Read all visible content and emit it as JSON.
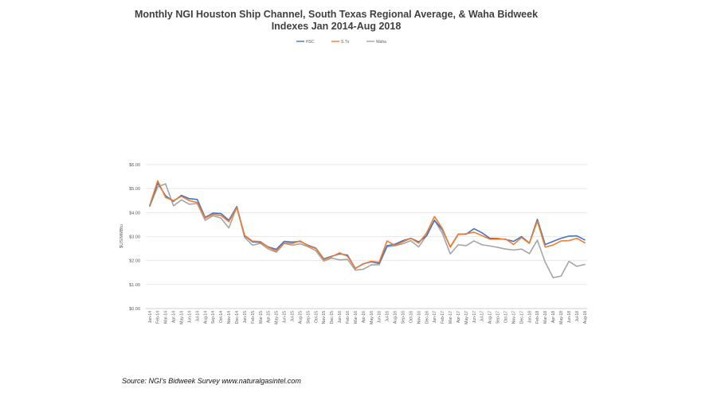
{
  "chart_data": {
    "type": "line",
    "title_lines": [
      "Monthly NGI Houston Ship Channel, South Texas Regional Average, & Waha Bidweek",
      "Indexes Jan 2014-Aug 2018"
    ],
    "ylabel": "$US/MMBtu",
    "xlabel": "",
    "ylim": [
      0,
      6
    ],
    "yticks": [
      "$0.00",
      "$1.00",
      "$2.00",
      "$3.00",
      "$4.00",
      "$5.00",
      "$6.00"
    ],
    "legend_position": "top-center",
    "grid": true,
    "categories": [
      "Jan-14",
      "Feb-14",
      "Mar-14",
      "Apr-14",
      "May-14",
      "Jun-14",
      "Jul-14",
      "Aug-14",
      "Sep-14",
      "Oct-14",
      "Nov-14",
      "Dec-14",
      "Jan-15",
      "Feb-15",
      "Mar-15",
      "Apr-15",
      "May-15",
      "Jun-15",
      "Jul-15",
      "Aug-15",
      "Sep-15",
      "Oct-15",
      "Nov-15",
      "Dec-15",
      "Jan-16",
      "Feb-16",
      "Mar-16",
      "Apr-16",
      "May-16",
      "Jun-16",
      "Jul-16",
      "Aug-16",
      "Sep-16",
      "Oct-16",
      "Nov-16",
      "Dec-16",
      "Jan-17",
      "Feb-17",
      "Mar-17",
      "Apr-17",
      "May-17",
      "Jun-17",
      "Jul-17",
      "Aug-17",
      "Sep-17",
      "Oct-17",
      "Nov-17",
      "Dec-17",
      "Jan-18",
      "Feb-18",
      "Mar-18",
      "Apr-18",
      "May-18",
      "Jun-18",
      "Jul-18",
      "Aug-18"
    ],
    "tick_labels": [
      "Jan-14",
      "Feb-14",
      "Mar-14",
      "Apr-14",
      "May-14",
      "Jun-14",
      "Jul-14",
      "Aug-14",
      "Sep-14",
      "Oct-14",
      "Nov-14",
      "Dec-14",
      "Jan-15",
      "Feb-15",
      "Mar-15",
      "Apr-15",
      "May-15",
      "Jun-15",
      "Jul-15",
      "Aug-15",
      "Sep-15",
      "Oct-15",
      "Nov-15",
      "Dec-15",
      "Jan-16",
      "Feb-16",
      "Mar-16",
      "Apr-16",
      "May-16",
      "Jun-16",
      "Jul-16",
      "Aug-16",
      "Sep-16",
      "Oct-16",
      "Nov-16",
      "Dec-16",
      "Jan-17",
      "Feb-17",
      "Mar-17",
      "Apr-17",
      "May-17",
      "Jun-17",
      "Jul-17",
      "Aug-17",
      "Sep-17",
      "Oct-17",
      "Nov-17",
      "Dec-17",
      "Jan-18",
      "Feb-18",
      "Mar-18",
      "Apr-18",
      "May-18",
      "Jun-18",
      "Jul-18",
      "Aug-18"
    ],
    "series": [
      {
        "name": "HSC",
        "color": "#4472c4",
        "values": [
          4.28,
          5.23,
          4.7,
          4.47,
          4.72,
          4.58,
          4.55,
          3.8,
          3.98,
          3.96,
          3.68,
          4.25,
          3.03,
          2.78,
          2.76,
          2.57,
          2.47,
          2.8,
          2.77,
          2.8,
          2.64,
          2.52,
          2.07,
          2.18,
          2.28,
          2.23,
          1.67,
          1.87,
          1.95,
          1.88,
          2.62,
          2.68,
          2.83,
          2.93,
          2.78,
          3.03,
          3.68,
          3.28,
          2.57,
          3.1,
          3.1,
          3.33,
          3.16,
          2.93,
          2.92,
          2.88,
          2.8,
          3.0,
          2.73,
          3.72,
          2.67,
          2.8,
          2.93,
          3.02,
          3.03,
          2.86
        ]
      },
      {
        "name": "S.Tx",
        "color": "#ed7d31",
        "values": [
          4.31,
          5.33,
          4.63,
          4.5,
          4.68,
          4.5,
          4.42,
          3.77,
          3.93,
          3.88,
          3.62,
          4.2,
          3.05,
          2.81,
          2.79,
          2.55,
          2.4,
          2.73,
          2.71,
          2.82,
          2.62,
          2.5,
          2.04,
          2.16,
          2.32,
          2.18,
          1.68,
          1.86,
          1.97,
          1.93,
          2.82,
          2.63,
          2.78,
          2.93,
          2.73,
          3.15,
          3.84,
          3.33,
          2.56,
          3.09,
          3.12,
          3.18,
          3.04,
          2.89,
          2.89,
          2.9,
          2.67,
          2.96,
          2.72,
          3.64,
          2.56,
          2.65,
          2.82,
          2.83,
          2.93,
          2.74
        ]
      },
      {
        "name": "Waha",
        "color": "#a5a5a5",
        "values": [
          4.27,
          5.07,
          5.2,
          4.28,
          4.53,
          4.35,
          4.38,
          3.68,
          3.87,
          3.77,
          3.36,
          4.23,
          2.96,
          2.64,
          2.72,
          2.48,
          2.35,
          2.72,
          2.64,
          2.7,
          2.58,
          2.41,
          1.98,
          2.1,
          2.03,
          2.05,
          1.6,
          1.64,
          1.82,
          1.83,
          2.57,
          2.62,
          2.7,
          2.83,
          2.57,
          3.05,
          3.68,
          3.13,
          2.28,
          2.66,
          2.62,
          2.82,
          2.66,
          2.61,
          2.55,
          2.48,
          2.44,
          2.48,
          2.29,
          2.85,
          1.93,
          1.29,
          1.35,
          1.97,
          1.76,
          1.84
        ]
      }
    ]
  },
  "footer": {
    "source_text": "Source: NGI's Bidweek Survey  www.naturalgasintel.com"
  }
}
